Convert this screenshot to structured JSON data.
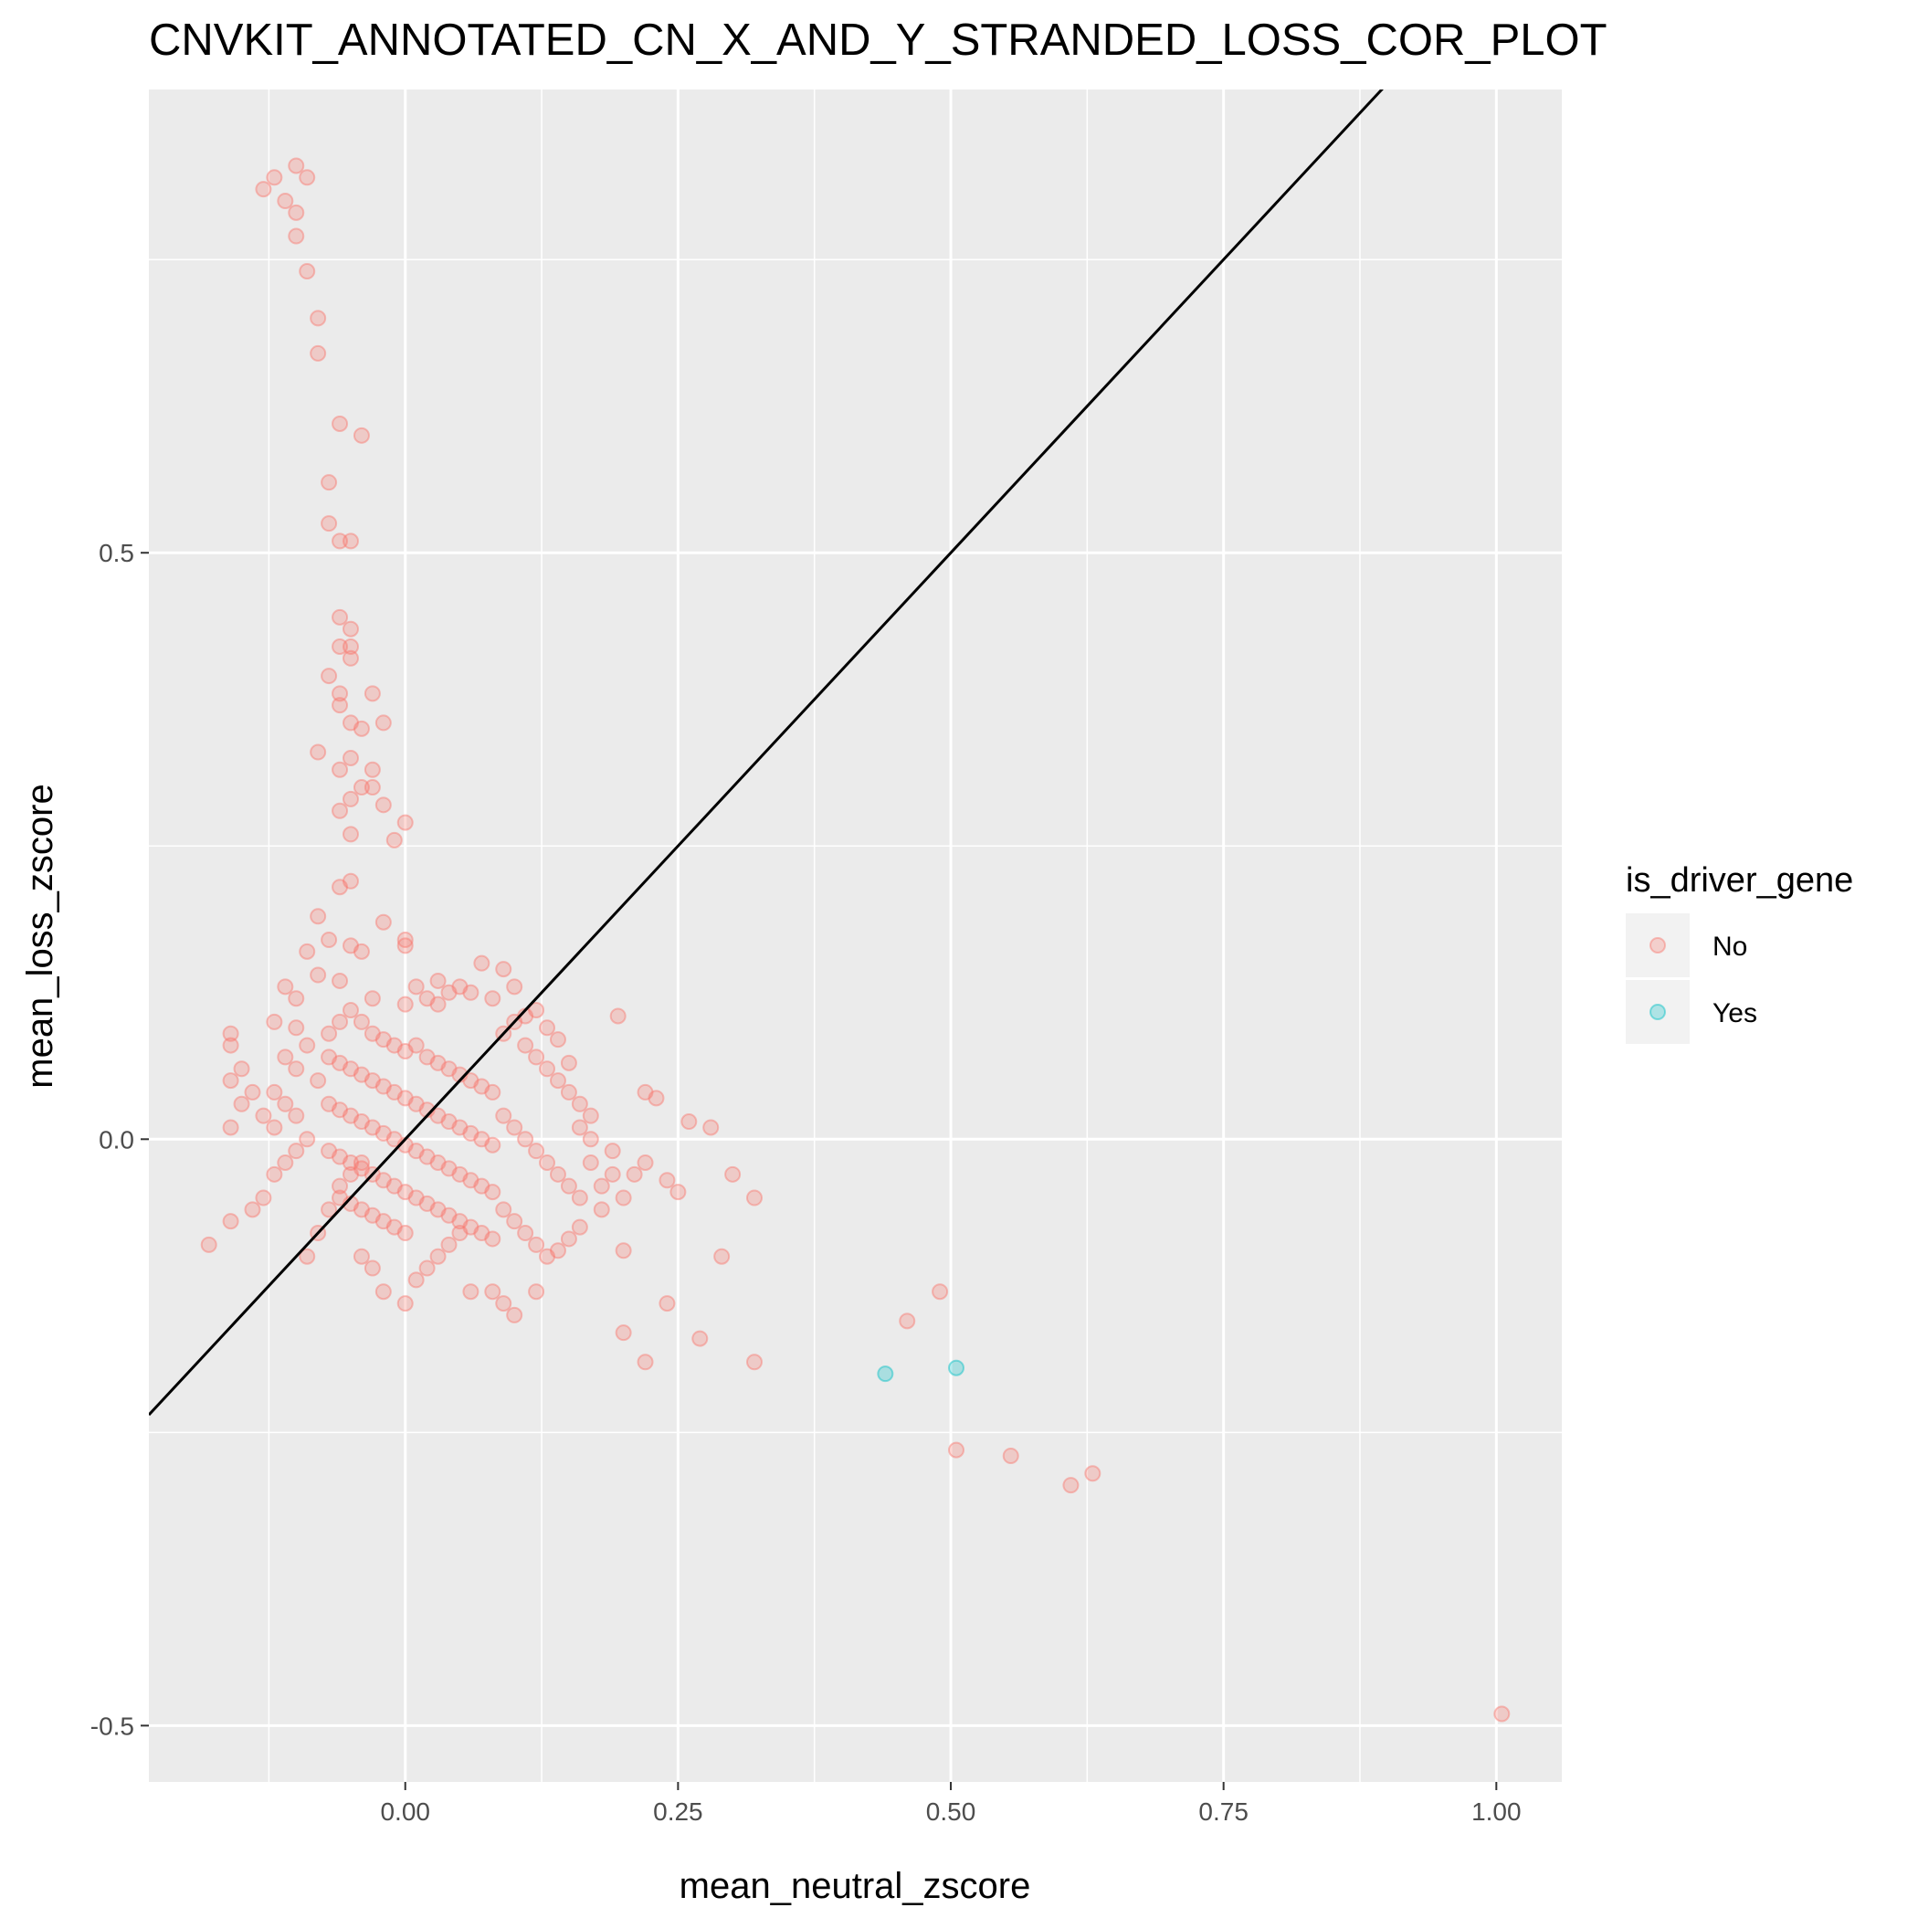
{
  "chart_data": {
    "type": "scatter",
    "title": "CNVKIT_ANNOTATED_CN_X_AND_Y_STRANDED_LOSS_COR_PLOT",
    "xlabel": "mean_neutral_zscore",
    "ylabel": "mean_loss_zscore",
    "xlim": [
      -0.235,
      1.06
    ],
    "ylim": [
      -0.548,
      0.895
    ],
    "x_ticks": [
      0.0,
      0.25,
      0.5,
      0.75,
      1.0
    ],
    "x_tick_labels": [
      "0.00",
      "0.25",
      "0.50",
      "0.75",
      "1.00"
    ],
    "y_ticks": [
      0.5,
      0.0,
      -0.5
    ],
    "y_tick_labels": [
      "0.5",
      "0.0",
      "-0.5"
    ],
    "grid": true,
    "background": "#ebebeb",
    "reference_line": {
      "slope": 1,
      "intercept": 0,
      "color": "#000000"
    },
    "legend": {
      "title": "is_driver_gene",
      "position": "right",
      "entries": [
        {
          "label": "No",
          "color": "#f8766d"
        },
        {
          "label": "Yes",
          "color": "#00bfc4"
        }
      ]
    },
    "series": [
      {
        "name": "No",
        "color": "#f8766d",
        "points": [
          [
            -0.13,
            0.81
          ],
          [
            -0.12,
            0.82
          ],
          [
            -0.11,
            0.8
          ],
          [
            -0.1,
            0.83
          ],
          [
            -0.09,
            0.82
          ],
          [
            -0.1,
            0.79
          ],
          [
            -0.1,
            0.77
          ],
          [
            -0.09,
            0.74
          ],
          [
            -0.08,
            0.7
          ],
          [
            -0.08,
            0.67
          ],
          [
            -0.06,
            0.61
          ],
          [
            -0.04,
            0.6
          ],
          [
            -0.07,
            0.56
          ],
          [
            -0.07,
            0.525
          ],
          [
            -0.05,
            0.51
          ],
          [
            -0.06,
            0.51
          ],
          [
            -0.06,
            0.445
          ],
          [
            -0.05,
            0.435
          ],
          [
            -0.06,
            0.42
          ],
          [
            -0.05,
            0.42
          ],
          [
            -0.05,
            0.41
          ],
          [
            -0.07,
            0.395
          ],
          [
            -0.06,
            0.38
          ],
          [
            -0.03,
            0.38
          ],
          [
            -0.06,
            0.37
          ],
          [
            -0.05,
            0.355
          ],
          [
            -0.04,
            0.35
          ],
          [
            -0.02,
            0.355
          ],
          [
            -0.08,
            0.33
          ],
          [
            -0.05,
            0.325
          ],
          [
            -0.06,
            0.315
          ],
          [
            -0.03,
            0.315
          ],
          [
            -0.04,
            0.3
          ],
          [
            -0.03,
            0.3
          ],
          [
            -0.05,
            0.29
          ],
          [
            -0.02,
            0.285
          ],
          [
            -0.06,
            0.28
          ],
          [
            0.0,
            0.27
          ],
          [
            -0.05,
            0.26
          ],
          [
            -0.01,
            0.255
          ],
          [
            -0.06,
            0.215
          ],
          [
            -0.05,
            0.22
          ],
          [
            -0.08,
            0.19
          ],
          [
            -0.02,
            0.185
          ],
          [
            -0.07,
            0.17
          ],
          [
            -0.05,
            0.165
          ],
          [
            0.0,
            0.165
          ],
          [
            0.0,
            0.17
          ],
          [
            -0.09,
            0.16
          ],
          [
            -0.04,
            0.16
          ],
          [
            0.07,
            0.15
          ],
          [
            0.09,
            0.145
          ],
          [
            -0.08,
            0.14
          ],
          [
            -0.06,
            0.135
          ],
          [
            0.01,
            0.13
          ],
          [
            0.05,
            0.13
          ],
          [
            -0.11,
            0.13
          ],
          [
            -0.1,
            0.12
          ],
          [
            0.02,
            0.12
          ],
          [
            0.08,
            0.12
          ],
          [
            0.04,
            0.125
          ],
          [
            0.12,
            0.11
          ],
          [
            0.0,
            0.115
          ],
          [
            0.03,
            0.115
          ],
          [
            -0.16,
            0.09
          ],
          [
            -0.16,
            0.08
          ],
          [
            -0.15,
            0.06
          ],
          [
            -0.16,
            0.05
          ],
          [
            -0.14,
            0.04
          ],
          [
            -0.15,
            0.03
          ],
          [
            -0.13,
            0.02
          ],
          [
            -0.16,
            0.01
          ],
          [
            -0.12,
            0.1
          ],
          [
            -0.1,
            0.095
          ],
          [
            -0.09,
            0.08
          ],
          [
            -0.11,
            0.07
          ],
          [
            -0.1,
            0.06
          ],
          [
            -0.08,
            0.05
          ],
          [
            -0.12,
            0.04
          ],
          [
            -0.11,
            0.03
          ],
          [
            -0.1,
            0.02
          ],
          [
            -0.12,
            0.01
          ],
          [
            -0.09,
            0.0
          ],
          [
            -0.1,
            -0.01
          ],
          [
            -0.11,
            -0.02
          ],
          [
            -0.12,
            -0.03
          ],
          [
            -0.13,
            -0.05
          ],
          [
            -0.14,
            -0.06
          ],
          [
            -0.16,
            -0.07
          ],
          [
            -0.18,
            -0.09
          ],
          [
            -0.09,
            -0.1
          ],
          [
            -0.08,
            -0.08
          ],
          [
            -0.07,
            -0.06
          ],
          [
            -0.06,
            -0.04
          ],
          [
            -0.05,
            -0.03
          ],
          [
            -0.04,
            -0.02
          ],
          [
            -0.07,
            0.09
          ],
          [
            -0.06,
            0.1
          ],
          [
            -0.05,
            0.11
          ],
          [
            -0.04,
            0.1
          ],
          [
            -0.03,
            0.09
          ],
          [
            -0.02,
            0.085
          ],
          [
            -0.01,
            0.08
          ],
          [
            0.0,
            0.075
          ],
          [
            -0.07,
            0.07
          ],
          [
            -0.06,
            0.065
          ],
          [
            -0.05,
            0.06
          ],
          [
            -0.04,
            0.055
          ],
          [
            -0.03,
            0.05
          ],
          [
            -0.02,
            0.045
          ],
          [
            -0.01,
            0.04
          ],
          [
            0.0,
            0.035
          ],
          [
            -0.07,
            0.03
          ],
          [
            -0.06,
            0.025
          ],
          [
            -0.05,
            0.02
          ],
          [
            -0.04,
            0.015
          ],
          [
            -0.03,
            0.01
          ],
          [
            -0.02,
            0.005
          ],
          [
            -0.01,
            0.0
          ],
          [
            0.0,
            -0.005
          ],
          [
            -0.07,
            -0.01
          ],
          [
            -0.06,
            -0.015
          ],
          [
            -0.05,
            -0.02
          ],
          [
            -0.04,
            -0.025
          ],
          [
            -0.03,
            -0.03
          ],
          [
            -0.02,
            -0.035
          ],
          [
            -0.01,
            -0.04
          ],
          [
            0.0,
            -0.045
          ],
          [
            -0.06,
            -0.05
          ],
          [
            -0.05,
            -0.055
          ],
          [
            -0.04,
            -0.06
          ],
          [
            -0.03,
            -0.065
          ],
          [
            -0.02,
            -0.07
          ],
          [
            -0.01,
            -0.075
          ],
          [
            0.0,
            -0.08
          ],
          [
            -0.04,
            -0.1
          ],
          [
            -0.03,
            -0.11
          ],
          [
            -0.02,
            -0.13
          ],
          [
            0.01,
            -0.12
          ],
          [
            0.02,
            -0.11
          ],
          [
            0.0,
            -0.14
          ],
          [
            0.03,
            -0.1
          ],
          [
            0.04,
            -0.09
          ],
          [
            0.05,
            -0.08
          ],
          [
            0.01,
            0.08
          ],
          [
            0.02,
            0.07
          ],
          [
            0.03,
            0.065
          ],
          [
            0.04,
            0.06
          ],
          [
            0.05,
            0.055
          ],
          [
            0.06,
            0.05
          ],
          [
            0.07,
            0.045
          ],
          [
            0.08,
            0.04
          ],
          [
            0.01,
            0.03
          ],
          [
            0.02,
            0.025
          ],
          [
            0.03,
            0.02
          ],
          [
            0.04,
            0.015
          ],
          [
            0.05,
            0.01
          ],
          [
            0.06,
            0.005
          ],
          [
            0.07,
            0.0
          ],
          [
            0.08,
            -0.005
          ],
          [
            0.01,
            -0.01
          ],
          [
            0.02,
            -0.015
          ],
          [
            0.03,
            -0.02
          ],
          [
            0.04,
            -0.025
          ],
          [
            0.05,
            -0.03
          ],
          [
            0.06,
            -0.035
          ],
          [
            0.07,
            -0.04
          ],
          [
            0.08,
            -0.045
          ],
          [
            0.01,
            -0.05
          ],
          [
            0.02,
            -0.055
          ],
          [
            0.03,
            -0.06
          ],
          [
            0.04,
            -0.065
          ],
          [
            0.05,
            -0.07
          ],
          [
            0.06,
            -0.075
          ],
          [
            0.07,
            -0.08
          ],
          [
            0.08,
            -0.085
          ],
          [
            0.09,
            0.09
          ],
          [
            0.1,
            0.1
          ],
          [
            0.11,
            0.08
          ],
          [
            0.12,
            0.07
          ],
          [
            0.13,
            0.06
          ],
          [
            0.14,
            0.05
          ],
          [
            0.15,
            0.04
          ],
          [
            0.16,
            0.03
          ],
          [
            0.09,
            0.02
          ],
          [
            0.1,
            0.01
          ],
          [
            0.11,
            0.0
          ],
          [
            0.12,
            -0.01
          ],
          [
            0.13,
            -0.02
          ],
          [
            0.14,
            -0.03
          ],
          [
            0.15,
            -0.04
          ],
          [
            0.16,
            -0.05
          ],
          [
            0.09,
            -0.06
          ],
          [
            0.1,
            -0.07
          ],
          [
            0.11,
            -0.08
          ],
          [
            0.12,
            -0.09
          ],
          [
            0.13,
            -0.1
          ],
          [
            0.14,
            -0.095
          ],
          [
            0.15,
            -0.085
          ],
          [
            0.16,
            -0.075
          ],
          [
            0.17,
            0.0
          ],
          [
            0.17,
            -0.02
          ],
          [
            0.18,
            -0.04
          ],
          [
            0.18,
            -0.06
          ],
          [
            0.19,
            -0.03
          ],
          [
            0.19,
            -0.01
          ],
          [
            0.17,
            0.02
          ],
          [
            0.16,
            0.01
          ],
          [
            0.195,
            0.105
          ],
          [
            0.2,
            -0.05
          ],
          [
            0.2,
            -0.095
          ],
          [
            0.21,
            -0.03
          ],
          [
            0.22,
            -0.02
          ],
          [
            0.22,
            0.04
          ],
          [
            0.23,
            0.035
          ],
          [
            0.24,
            -0.035
          ],
          [
            0.25,
            -0.045
          ],
          [
            0.26,
            0.015
          ],
          [
            0.28,
            0.01
          ],
          [
            0.3,
            -0.03
          ],
          [
            0.32,
            -0.05
          ],
          [
            0.29,
            -0.1
          ],
          [
            0.24,
            -0.14
          ],
          [
            0.2,
            -0.165
          ],
          [
            0.22,
            -0.19
          ],
          [
            0.27,
            -0.17
          ],
          [
            0.32,
            -0.19
          ],
          [
            0.06,
            -0.13
          ],
          [
            0.09,
            -0.14
          ],
          [
            0.1,
            -0.15
          ],
          [
            0.12,
            -0.13
          ],
          [
            0.08,
            -0.13
          ],
          [
            0.03,
            0.135
          ],
          [
            0.06,
            0.125
          ],
          [
            -0.03,
            0.12
          ],
          [
            0.1,
            0.13
          ],
          [
            0.11,
            0.105
          ],
          [
            0.13,
            0.095
          ],
          [
            0.14,
            0.085
          ],
          [
            0.15,
            0.065
          ],
          [
            0.46,
            -0.155
          ],
          [
            0.49,
            -0.13
          ],
          [
            0.505,
            -0.265
          ],
          [
            0.555,
            -0.27
          ],
          [
            0.61,
            -0.295
          ],
          [
            0.63,
            -0.285
          ],
          [
            1.005,
            -0.49
          ]
        ]
      },
      {
        "name": "Yes",
        "color": "#00bfc4",
        "points": [
          [
            0.44,
            -0.2
          ],
          [
            0.505,
            -0.195
          ]
        ]
      }
    ]
  }
}
